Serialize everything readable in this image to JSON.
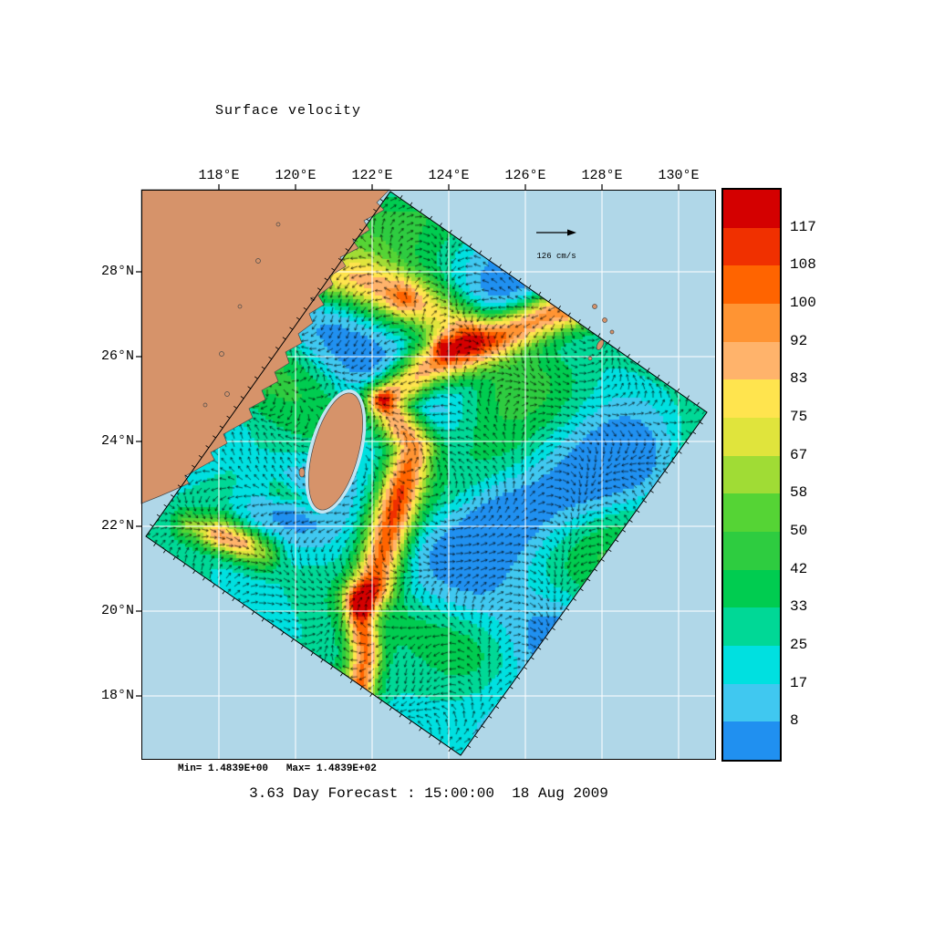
{
  "page": {
    "background_color": "#ffffff"
  },
  "chart_data": {
    "type": "heatmap",
    "title": "Surface velocity",
    "caption": "3.63 Day Forecast : 15:00:00  18 Aug 2009",
    "stats_label": "Min= 1.4839E+00   Max= 1.4839E+02",
    "reference_arrow_label": "126 cm/s",
    "field_units": "cm/s",
    "field_min": 1.4839,
    "field_max": 148.39,
    "x_axis": {
      "tick_labels": [
        "118°E",
        "120°E",
        "122°E",
        "124°E",
        "126°E",
        "128°E",
        "130°E"
      ]
    },
    "y_axis": {
      "tick_labels": [
        "28°N",
        "26°N",
        "24°N",
        "22°N",
        "20°N",
        "18°N"
      ]
    },
    "colorbar": {
      "boundary_labels": [
        "117",
        "108",
        "100",
        "92",
        "83",
        "75",
        "67",
        "58",
        "50",
        "42",
        "33",
        "25",
        "17",
        "8"
      ],
      "band_colors_top_to_bottom": [
        "#d40000",
        "#f03000",
        "#ff6400",
        "#ff9433",
        "#ffb36b",
        "#ffe44e",
        "#e0e43c",
        "#a0dc35",
        "#55d435",
        "#2ecc40",
        "#00cc50",
        "#00d896",
        "#00e0e0",
        "#40c8f0",
        "#2090f0"
      ],
      "speed_bounds_ascending": [
        8,
        17,
        25,
        33,
        42,
        50,
        58,
        67,
        75,
        83,
        92,
        100,
        108,
        117
      ]
    },
    "map": {
      "ocean_color": "#b0d7e8",
      "land_color": "#d6936a",
      "coast_color": "#4a4a4a",
      "coast_halo_color": "#c2e4f2",
      "grid_color": "#ffffff",
      "arrow_color": "#000000",
      "domain_outline_color": "#000000"
    }
  }
}
